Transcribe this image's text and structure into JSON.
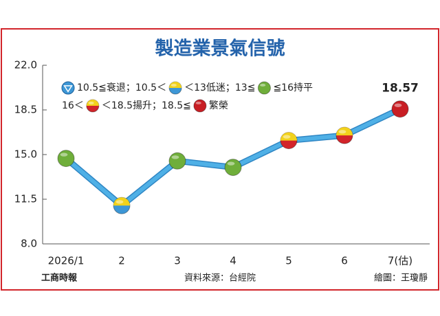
{
  "chart_data": {
    "type": "line",
    "title": "製造業景氣信號",
    "categories": [
      "2026/1",
      "2",
      "3",
      "4",
      "5",
      "6",
      "7(估)"
    ],
    "values": [
      14.7,
      11.0,
      14.5,
      14.0,
      16.1,
      16.5,
      18.57
    ],
    "point_colors": [
      [
        "#6fae3a"
      ],
      [
        "#f2d21b",
        "#3d97d6"
      ],
      [
        "#6fae3a"
      ],
      [
        "#6fae3a"
      ],
      [
        "#f2d21b",
        "#d2242a"
      ],
      [
        "#f2d21b",
        "#d2242a"
      ],
      [
        "#c81e24"
      ]
    ],
    "line_color": "#4fb0e6",
    "ylim": [
      8.0,
      22.0
    ],
    "yticks": [
      {
        "value": 8.0,
        "label": "8.0"
      },
      {
        "value": 11.5,
        "label": "11.5"
      },
      {
        "value": 15.0,
        "label": "15.0"
      },
      {
        "value": 18.5,
        "label": "18.5"
      },
      {
        "value": 22.0,
        "label": "22.0"
      }
    ],
    "legend": [
      [
        {
          "shape": "triangle",
          "colors": [
            "#3d97d6"
          ]
        },
        {
          "text": "10.5≦衰退；10.5＜"
        },
        {
          "shape": "circle",
          "colors": [
            "#f2d21b",
            "#3d97d6"
          ]
        },
        {
          "text": "＜13低迷；13≦"
        },
        {
          "shape": "circle",
          "colors": [
            "#6fae3a"
          ]
        },
        {
          "text": "≦16持平"
        }
      ],
      [
        {
          "text": "16＜"
        },
        {
          "shape": "circle",
          "colors": [
            "#f2d21b",
            "#d2242a"
          ]
        },
        {
          "text": "＜18.5揚升；18.5≦"
        },
        {
          "shape": "circle",
          "colors": [
            "#c81e24"
          ]
        },
        {
          "text": "繁榮"
        }
      ]
    ],
    "publisher": "工商時報",
    "source": "資料來源：台經院",
    "credit": "繪圖：王瓊靜"
  }
}
